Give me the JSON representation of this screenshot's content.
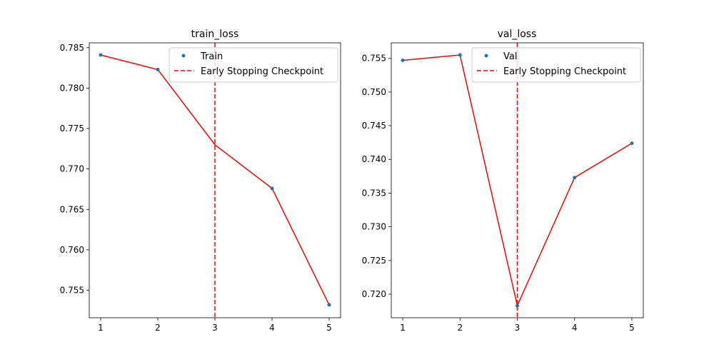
{
  "chart_data": [
    {
      "type": "line",
      "title": "train_loss",
      "xlabel": "",
      "ylabel": "",
      "x": [
        1,
        2,
        3,
        4,
        5
      ],
      "xticks": [
        "1",
        "2",
        "3",
        "4",
        "5"
      ],
      "yticks": [
        "0.755",
        "0.760",
        "0.765",
        "0.770",
        "0.775",
        "0.780",
        "0.785"
      ],
      "xlim": [
        0.8,
        5.2
      ],
      "ylim": [
        0.7516,
        0.7856
      ],
      "grid": false,
      "legend_position": "top-right",
      "series": [
        {
          "name": "Train",
          "style": "points",
          "color": "#1f77b4",
          "x": [
            1,
            2,
            4,
            5
          ],
          "values": [
            0.7841,
            0.7823,
            0.7676,
            0.7532
          ]
        },
        {
          "name": "",
          "style": "line",
          "color": "#ff0000",
          "x": [
            1,
            2,
            3,
            4,
            5
          ],
          "values": [
            0.7841,
            0.7823,
            0.773,
            0.7676,
            0.7532
          ]
        }
      ],
      "vline": {
        "name": "Early Stopping Checkpoint",
        "x": 3,
        "color": "#ff0000",
        "style": "dashed"
      }
    },
    {
      "type": "line",
      "title": "val_loss",
      "xlabel": "",
      "ylabel": "",
      "x": [
        1,
        2,
        3,
        4,
        5
      ],
      "xticks": [
        "1",
        "2",
        "3",
        "4",
        "5"
      ],
      "yticks": [
        "0.720",
        "0.725",
        "0.730",
        "0.735",
        "0.740",
        "0.745",
        "0.750",
        "0.755"
      ],
      "xlim": [
        0.8,
        5.2
      ],
      "ylim": [
        0.7165,
        0.7573
      ],
      "grid": false,
      "legend_position": "top-right",
      "series": [
        {
          "name": "Val",
          "style": "points",
          "color": "#1f77b4",
          "x": [
            1,
            2,
            3,
            4,
            5
          ],
          "values": [
            0.7547,
            0.7555,
            0.7183,
            0.7373,
            0.7424
          ]
        },
        {
          "name": "",
          "style": "line",
          "color": "#ff0000",
          "x": [
            1,
            2,
            3,
            4,
            5
          ],
          "values": [
            0.7547,
            0.7555,
            0.7183,
            0.7373,
            0.7424
          ]
        }
      ],
      "vline": {
        "name": "Early Stopping Checkpoint",
        "x": 3,
        "color": "#ff0000",
        "style": "dashed"
      }
    }
  ]
}
